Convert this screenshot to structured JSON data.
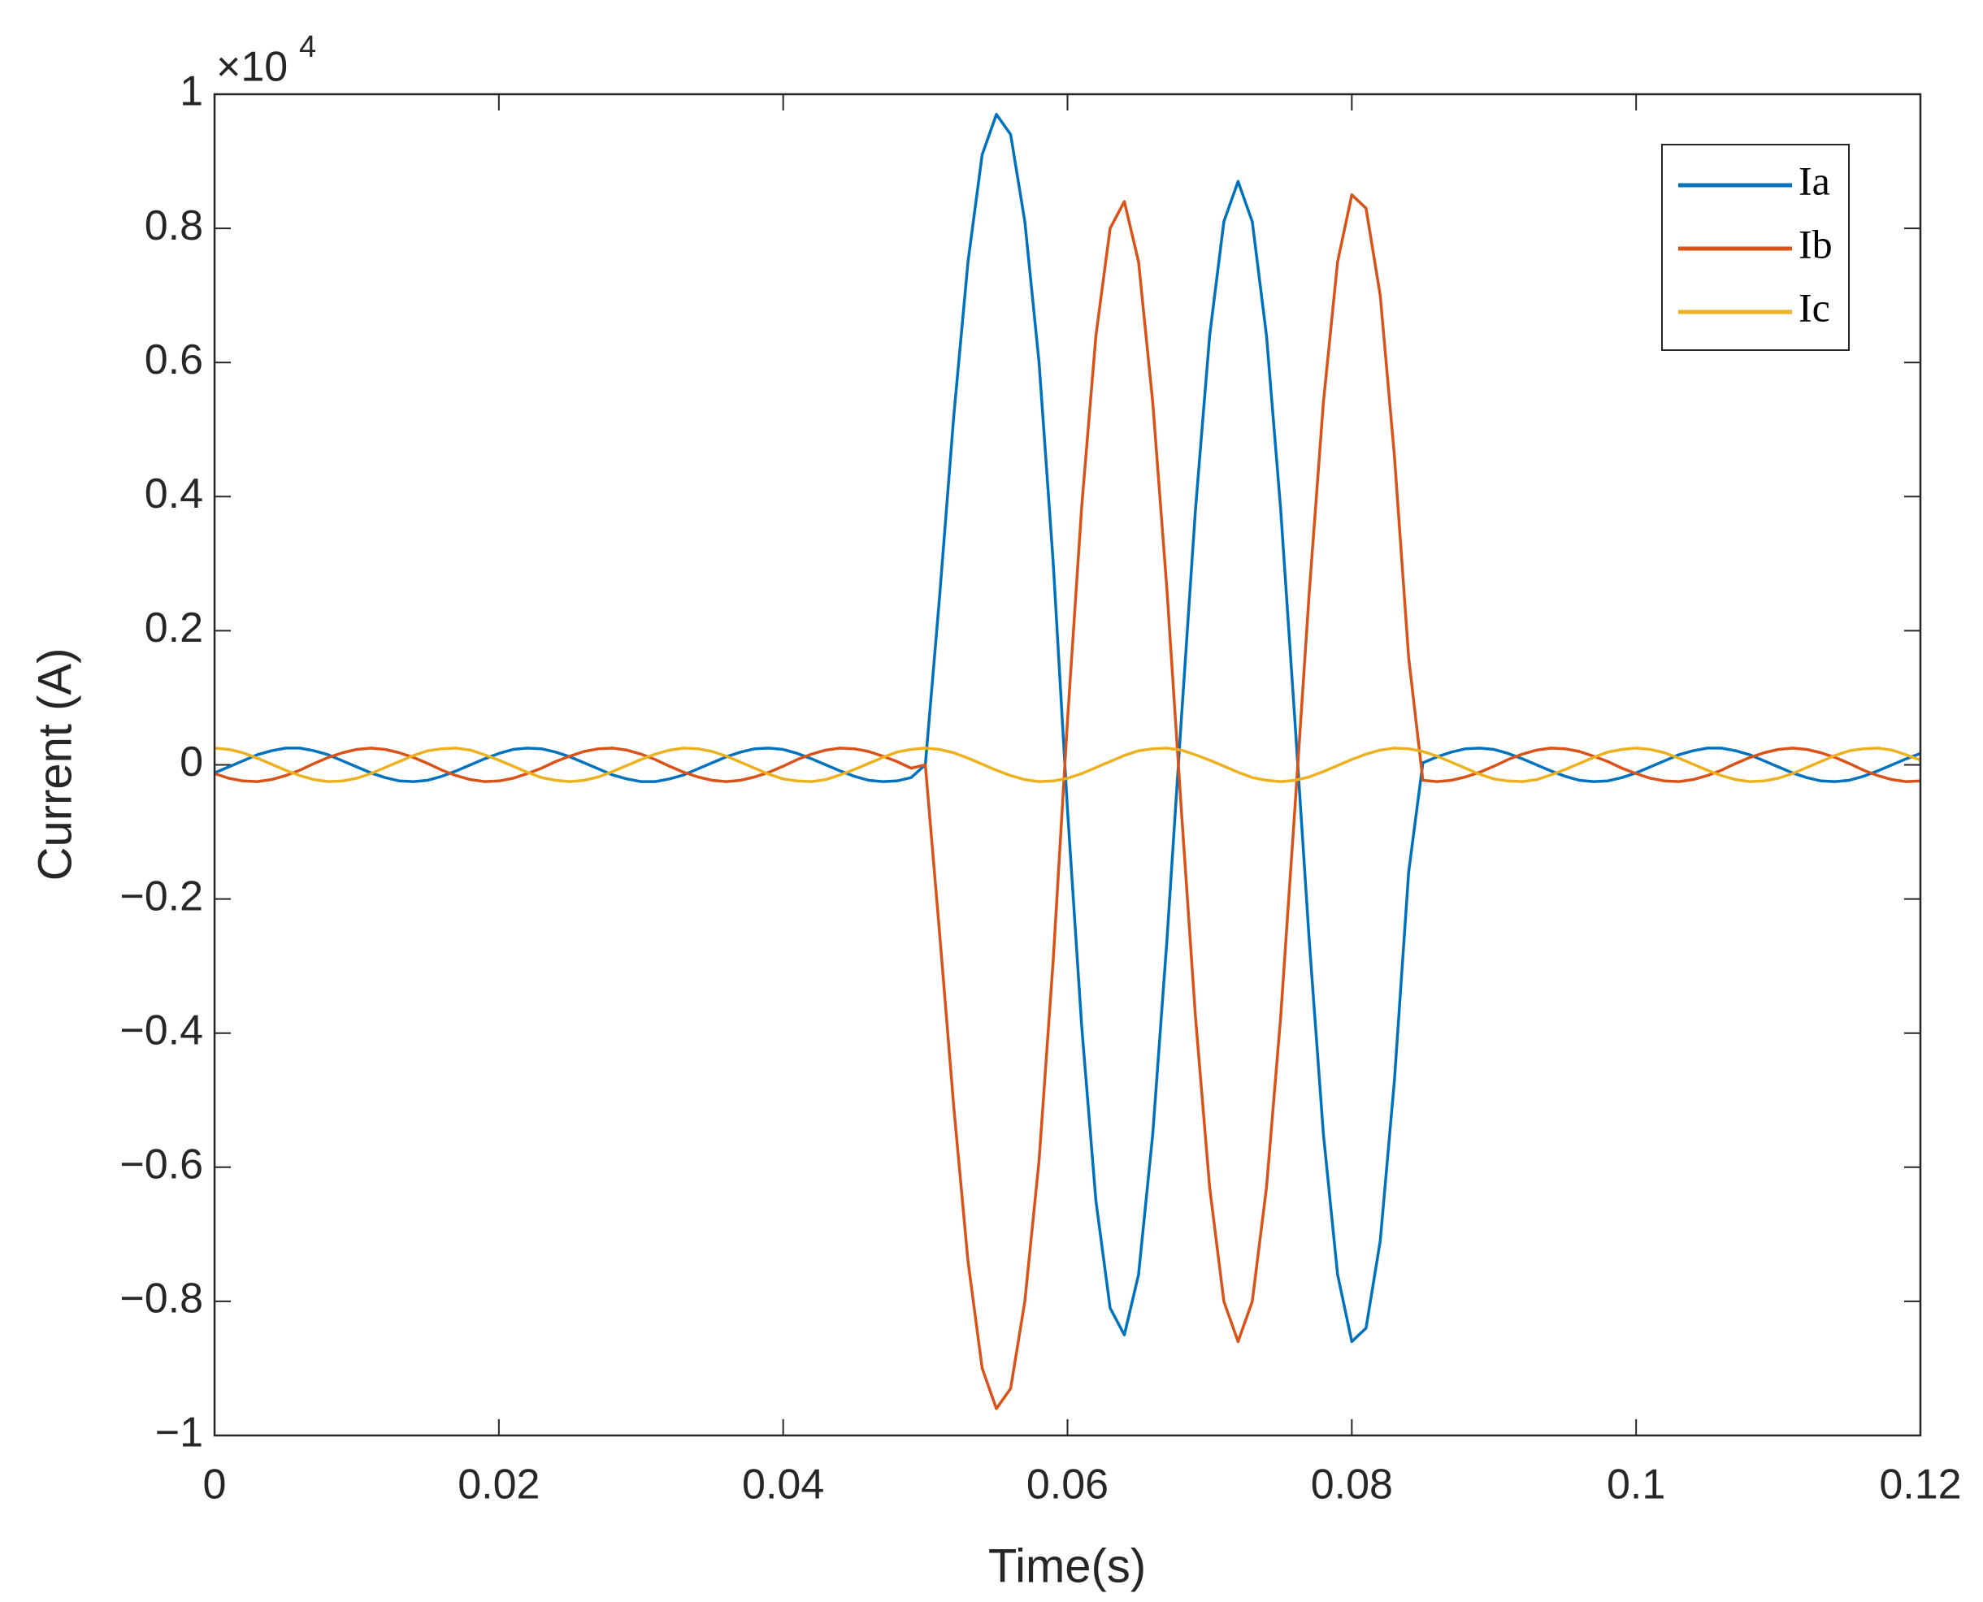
{
  "chart_data": {
    "type": "line",
    "x_label": "Time(s)",
    "y_label": "Current (A)",
    "y_multiplier": {
      "base": "×10",
      "exponent": "4"
    },
    "xlim": [
      0,
      0.12
    ],
    "xticks": [
      0,
      0.02,
      0.04,
      0.06,
      0.08,
      0.1,
      0.12
    ],
    "ylim": [
      -1,
      1
    ],
    "yticks": [
      {
        "value": -1,
        "label": "−1"
      },
      {
        "value": -0.8,
        "label": "−0.8"
      },
      {
        "value": -0.6,
        "label": "−0.6"
      },
      {
        "value": -0.4,
        "label": "−0.4"
      },
      {
        "value": -0.2,
        "label": "−0.2"
      },
      0,
      0.2,
      0.4,
      0.6,
      0.8,
      1
    ],
    "grid": false,
    "legend": "northeast",
    "x": [
      0,
      0.001,
      0.002,
      0.003,
      0.004,
      0.005,
      0.006,
      0.007,
      0.008,
      0.009,
      0.01,
      0.011,
      0.012,
      0.013,
      0.014,
      0.015,
      0.016,
      0.017,
      0.018,
      0.019,
      0.02,
      0.021,
      0.022,
      0.023,
      0.024,
      0.025,
      0.026,
      0.027,
      0.028,
      0.029,
      0.03,
      0.031,
      0.032,
      0.033,
      0.034,
      0.035,
      0.036,
      0.037,
      0.038,
      0.039,
      0.04,
      0.041,
      0.042,
      0.043,
      0.044,
      0.045,
      0.046,
      0.047,
      0.048,
      0.049,
      0.05,
      0.051,
      0.052,
      0.053,
      0.054,
      0.055,
      0.056,
      0.057,
      0.058,
      0.059,
      0.06,
      0.061,
      0.062,
      0.063,
      0.064,
      0.065,
      0.066,
      0.067,
      0.068,
      0.069,
      0.07,
      0.071,
      0.072,
      0.073,
      0.074,
      0.075,
      0.076,
      0.077,
      0.078,
      0.079,
      0.08,
      0.081,
      0.082,
      0.083,
      0.084,
      0.085,
      0.086,
      0.087,
      0.088,
      0.089,
      0.09,
      0.091,
      0.092,
      0.093,
      0.094,
      0.095,
      0.096,
      0.097,
      0.098,
      0.099,
      0.1,
      0.101,
      0.102,
      0.103,
      0.104,
      0.105,
      0.106,
      0.107,
      0.108,
      0.109,
      0.11,
      0.111,
      0.112,
      0.113,
      0.114,
      0.115,
      0.116,
      0.117,
      0.118,
      0.119,
      0.12
    ],
    "series": [
      {
        "name": "Ia",
        "color": "#0072bd",
        "values": [
          -0.012,
          -0.003,
          0.006,
          0.015,
          0.021,
          0.025,
          0.025,
          0.021,
          0.015,
          0.006,
          -0.003,
          -0.012,
          -0.019,
          -0.024,
          -0.025,
          -0.023,
          -0.017,
          -0.009,
          0,
          0.009,
          0.017,
          0.023,
          0.025,
          0.024,
          0.019,
          0.012,
          0.003,
          -0.006,
          -0.015,
          -0.021,
          -0.025,
          -0.025,
          -0.021,
          -0.015,
          -0.006,
          0.003,
          0.012,
          0.019,
          0.024,
          0.025,
          0.023,
          0.017,
          0.009,
          0,
          -0.009,
          -0.017,
          -0.023,
          -0.025,
          -0.024,
          -0.019,
          0,
          0.25,
          0.52,
          0.75,
          0.91,
          0.97,
          0.94,
          0.81,
          0.6,
          0.3,
          -0.067,
          -0.39,
          -0.65,
          -0.81,
          -0.85,
          -0.76,
          -0.55,
          -0.26,
          0.065,
          0.38,
          0.64,
          0.81,
          0.87,
          0.81,
          0.64,
          0.38,
          0.065,
          -0.26,
          -0.55,
          -0.76,
          -0.86,
          -0.84,
          -0.71,
          -0.47,
          -0.16,
          0.003,
          0.012,
          0.019,
          0.024,
          0.025,
          0.023,
          0.017,
          0.009,
          0,
          -0.009,
          -0.017,
          -0.023,
          -0.025,
          -0.024,
          -0.019,
          -0.012,
          -0.003,
          0.006,
          0.015,
          0.021,
          0.025,
          0.025,
          0.021,
          0.015,
          0.006,
          -0.003,
          -0.012,
          -0.019,
          -0.024,
          -0.025,
          -0.023,
          -0.017,
          -0.009,
          0,
          0.009,
          0.017
        ]
      },
      {
        "name": "Ib",
        "color": "#d95319",
        "values": [
          -0.013,
          -0.02,
          -0.024,
          -0.025,
          -0.022,
          -0.016,
          -0.008,
          0.002,
          0.011,
          0.018,
          0.023,
          0.025,
          0.023,
          0.018,
          0.011,
          0.002,
          -0.008,
          -0.016,
          -0.022,
          -0.025,
          -0.024,
          -0.02,
          -0.013,
          -0.005,
          0.005,
          0.013,
          0.02,
          0.024,
          0.025,
          0.022,
          0.016,
          0.008,
          -0.002,
          -0.011,
          -0.018,
          -0.023,
          -0.025,
          -0.023,
          -0.018,
          -0.011,
          -0.002,
          0.008,
          0.016,
          0.022,
          0.025,
          0.024,
          0.02,
          0.013,
          0.005,
          -0.005,
          0,
          -0.25,
          -0.51,
          -0.74,
          -0.9,
          -0.96,
          -0.93,
          -0.8,
          -0.59,
          -0.29,
          0.066,
          0.385,
          0.64,
          0.8,
          0.84,
          0.75,
          0.54,
          0.26,
          -0.064,
          -0.375,
          -0.63,
          -0.8,
          -0.86,
          -0.8,
          -0.63,
          -0.375,
          -0.064,
          0.255,
          0.54,
          0.75,
          0.85,
          0.83,
          0.7,
          0.46,
          0.16,
          -0.023,
          -0.025,
          -0.023,
          -0.018,
          -0.011,
          -0.002,
          0.008,
          0.016,
          0.022,
          0.025,
          0.024,
          0.02,
          0.013,
          0.005,
          -0.005,
          -0.013,
          -0.02,
          -0.024,
          -0.025,
          -0.022,
          -0.016,
          -0.008,
          0.002,
          0.011,
          0.018,
          0.023,
          0.025,
          0.023,
          0.018,
          0.011,
          0.002,
          -0.008,
          -0.016,
          -0.022,
          -0.025,
          -0.024
        ]
      },
      {
        "name": "Ic",
        "color": "#edb120",
        "values": [
          0.025,
          0.023,
          0.018,
          0.01,
          0.001,
          -0.008,
          -0.016,
          -0.022,
          -0.025,
          -0.024,
          -0.02,
          -0.013,
          -0.004,
          0.005,
          0.014,
          0.021,
          0.024,
          0.025,
          0.022,
          0.015,
          0.007,
          -0.002,
          -0.011,
          -0.019,
          -0.023,
          -0.025,
          -0.023,
          -0.018,
          -0.01,
          -0.001,
          0.008,
          0.016,
          0.022,
          0.025,
          0.024,
          0.02,
          0.013,
          0.004,
          -0.005,
          -0.014,
          -0.021,
          -0.024,
          -0.025,
          -0.022,
          -0.015,
          -0.007,
          0.002,
          0.011,
          0.019,
          0.023,
          0.025,
          0.023,
          0.018,
          0.01,
          0.001,
          -0.008,
          -0.016,
          -0.022,
          -0.025,
          -0.024,
          -0.02,
          -0.013,
          -0.004,
          0.005,
          0.014,
          0.021,
          0.024,
          0.025,
          0.022,
          0.015,
          0.007,
          -0.002,
          -0.011,
          -0.019,
          -0.023,
          -0.025,
          -0.023,
          -0.018,
          -0.01,
          -0.001,
          0.008,
          0.016,
          0.022,
          0.025,
          0.024,
          0.02,
          0.013,
          0.004,
          -0.005,
          -0.014,
          -0.021,
          -0.024,
          -0.025,
          -0.022,
          -0.015,
          -0.007,
          0.002,
          0.011,
          0.019,
          0.023,
          0.025,
          0.023,
          0.018,
          0.01,
          0.001,
          -0.008,
          -0.016,
          -0.022,
          -0.025,
          -0.024,
          -0.02,
          -0.013,
          -0.004,
          0.005,
          0.014,
          0.021,
          0.024,
          0.025,
          0.022,
          0.015,
          0.007
        ]
      }
    ]
  }
}
